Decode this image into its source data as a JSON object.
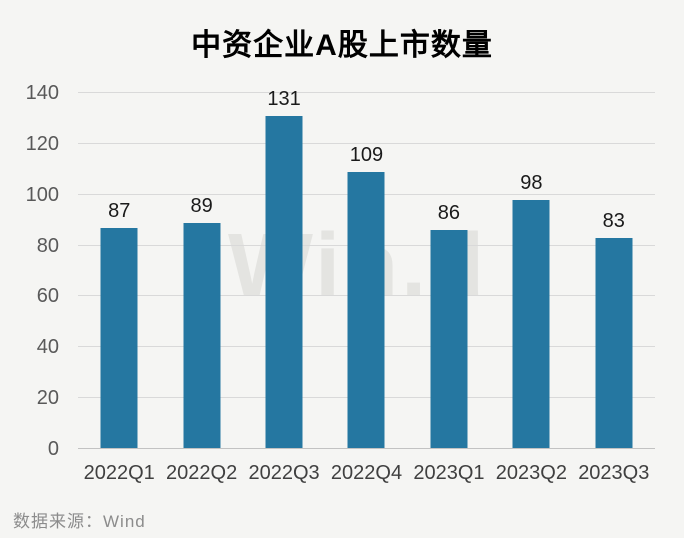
{
  "chart": {
    "title": "中资企业A股上市数量"
  },
  "chart_data": {
    "type": "bar",
    "title": "中资企业A股上市数量",
    "categories": [
      "2022Q1",
      "2022Q2",
      "2022Q3",
      "2022Q4",
      "2023Q1",
      "2023Q2",
      "2023Q3"
    ],
    "values": [
      87,
      89,
      131,
      109,
      86,
      98,
      83
    ],
    "xlabel": "",
    "ylabel": "",
    "ylim": [
      0,
      140
    ],
    "yticks": [
      0,
      20,
      40,
      60,
      80,
      100,
      120,
      140
    ],
    "grid": true,
    "legend": false,
    "data_labels": true,
    "bar_color": "#2577a1"
  },
  "watermark": {
    "text": "Win.d"
  },
  "footer": {
    "source": "数据来源：Wind"
  },
  "colors": {
    "background": "#f5f5f3",
    "bar": "#2577a1",
    "gridline": "#d9d9d9",
    "y_tick_text": "#595959",
    "x_tick_text": "#404040",
    "value_label_text": "#1a1a1a",
    "title_text": "#000000",
    "source_text": "#8c8c8c",
    "watermark_text": "#e4e4e1"
  }
}
